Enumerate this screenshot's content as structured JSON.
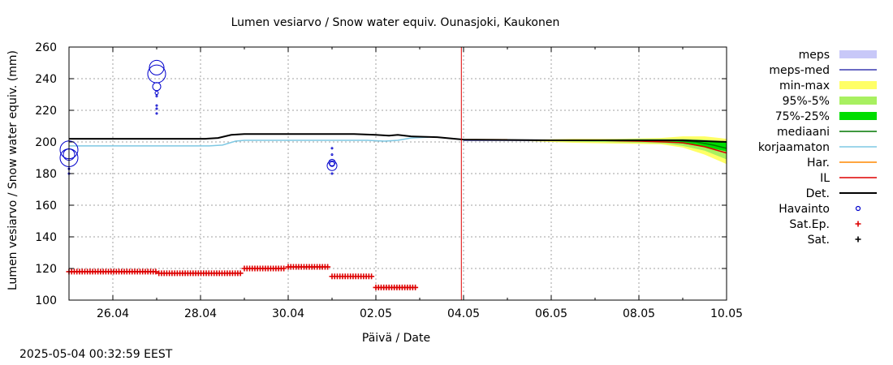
{
  "chart_data": {
    "type": "line",
    "title": "Lumen vesiarvo / Snow water equiv.   Ounasjoki, Kaukonen",
    "xlabel": "Päivä / Date",
    "ylabel": "Lumen vesiarvo / Snow water equiv. (mm)",
    "xlim": [
      25.0,
      40.0
    ],
    "ylim": [
      100,
      260
    ],
    "yticks": [
      100,
      120,
      140,
      160,
      180,
      200,
      220,
      240,
      260
    ],
    "xticks": [
      {
        "x": 26,
        "label": "26.04"
      },
      {
        "x": 28,
        "label": "28.04"
      },
      {
        "x": 30,
        "label": "30.04"
      },
      {
        "x": 32,
        "label": "02.05"
      },
      {
        "x": 34,
        "label": "04.05"
      },
      {
        "x": 36,
        "label": "06.05"
      },
      {
        "x": 38,
        "label": "08.05"
      },
      {
        "x": 40,
        "label": "10.05"
      }
    ],
    "x_units": "day (1 May = 31)",
    "grid": true,
    "legend_position": "right",
    "current_time_x": 33.95,
    "legend": [
      {
        "key": "meps",
        "label": "meps",
        "kind": "band",
        "color": "#c8c8f8"
      },
      {
        "key": "meps_med",
        "label": "meps-med",
        "kind": "line",
        "color": "#3a3ab0"
      },
      {
        "key": "minmax",
        "label": "min-max",
        "kind": "band",
        "color": "#ffff66"
      },
      {
        "key": "p95_5",
        "label": "95%-5%",
        "kind": "band",
        "color": "#a8f060"
      },
      {
        "key": "p75_25",
        "label": "75%-25%",
        "kind": "band",
        "color": "#00dd00"
      },
      {
        "key": "mediaani",
        "label": "mediaani",
        "kind": "line",
        "color": "#007700"
      },
      {
        "key": "korjaamaton",
        "label": "korjaamaton",
        "kind": "line",
        "color": "#7ec8e3"
      },
      {
        "key": "har",
        "label": "Har.",
        "kind": "line",
        "color": "#ff8800"
      },
      {
        "key": "il",
        "label": "IL",
        "kind": "line",
        "color": "#dd0000"
      },
      {
        "key": "det",
        "label": "Det.",
        "kind": "line",
        "color": "#000000"
      },
      {
        "key": "havainto",
        "label": "Havainto",
        "kind": "circle",
        "color": "#0000cc"
      },
      {
        "key": "sat_ep",
        "label": "Sat.Ep.",
        "kind": "plus",
        "color": "#dd0000"
      },
      {
        "key": "sat",
        "label": "Sat.",
        "kind": "plus",
        "color": "#000000"
      }
    ],
    "series": [
      {
        "key": "det",
        "x": [
          25.0,
          28.1,
          28.4,
          28.7,
          29.0,
          31.5,
          32.0,
          32.3,
          32.5,
          32.8,
          33.4,
          34.0,
          36.0,
          37.0,
          38.0,
          39.0,
          40.0
        ],
        "values": [
          202.0,
          202.0,
          202.5,
          204.5,
          205.0,
          205.0,
          204.5,
          204.0,
          204.5,
          203.5,
          203.0,
          201.5,
          201.0,
          201.0,
          201.0,
          201.0,
          200.0
        ]
      },
      {
        "key": "korjaamaton",
        "x": [
          25.0,
          28.2,
          28.5,
          28.8,
          29.0,
          31.8,
          32.2,
          32.5,
          32.8,
          33.2
        ],
        "values": [
          197.5,
          197.5,
          198.0,
          200.5,
          201.0,
          201.0,
          200.5,
          201.0,
          202.5,
          203.0
        ]
      },
      {
        "key": "har",
        "x": [
          34.0,
          34.5,
          35.0
        ],
        "values": [
          201.5,
          201.5,
          201.5
        ]
      },
      {
        "key": "il",
        "x": [
          37.0,
          38.0,
          38.6,
          39.0,
          39.5,
          40.0
        ],
        "values": [
          201.0,
          200.5,
          200.0,
          199.5,
          197.0,
          193.0
        ]
      },
      {
        "key": "mediaani",
        "x": [
          36.0,
          37.0,
          38.0,
          38.8,
          39.3,
          39.7,
          40.0
        ],
        "values": [
          201.0,
          201.0,
          201.0,
          201.0,
          200.0,
          198.0,
          196.0
        ]
      },
      {
        "key": "meps_med",
        "x": [
          34.0,
          35.0,
          36.0
        ],
        "values": [
          201.0,
          201.0,
          201.0
        ]
      }
    ],
    "bands": [
      {
        "key": "minmax",
        "x": [
          35.5,
          36.5,
          37.5,
          38.5,
          39.0,
          39.5,
          40.0
        ],
        "low": [
          200.5,
          199.5,
          199.0,
          198.5,
          196.5,
          192.0,
          186.0
        ],
        "high": [
          201.5,
          202.0,
          202.0,
          202.5,
          203.5,
          203.5,
          202.0
        ]
      },
      {
        "key": "p95_5",
        "x": [
          36.0,
          37.0,
          38.0,
          38.6,
          39.0,
          39.5,
          40.0
        ],
        "low": [
          200.5,
          200.0,
          199.5,
          199.0,
          197.5,
          194.5,
          189.0
        ],
        "high": [
          201.5,
          201.5,
          202.0,
          202.0,
          202.0,
          201.5,
          200.5
        ]
      },
      {
        "key": "p75_25",
        "x": [
          37.0,
          38.0,
          38.6,
          39.0,
          39.5,
          40.0
        ],
        "low": [
          200.5,
          200.5,
          200.0,
          199.0,
          197.0,
          194.0
        ],
        "high": [
          201.5,
          201.5,
          201.5,
          201.5,
          201.0,
          199.5
        ]
      }
    ],
    "observations": {
      "key": "havainto",
      "points": [
        {
          "x": 25.0,
          "y": 195,
          "weight": 11
        },
        {
          "x": 25.0,
          "y": 190,
          "weight": 11
        },
        {
          "x": 25.0,
          "y": 192,
          "weight": 7
        },
        {
          "x": 25.0,
          "y": 183,
          "weight": 1
        },
        {
          "x": 25.0,
          "y": 180,
          "weight": 1
        },
        {
          "x": 27.0,
          "y": 247,
          "weight": 9
        },
        {
          "x": 27.0,
          "y": 243,
          "weight": 11
        },
        {
          "x": 27.0,
          "y": 235,
          "weight": 5
        },
        {
          "x": 27.0,
          "y": 231,
          "weight": 2
        },
        {
          "x": 27.0,
          "y": 229,
          "weight": 1
        },
        {
          "x": 27.0,
          "y": 223,
          "weight": 1
        },
        {
          "x": 27.0,
          "y": 221,
          "weight": 1
        },
        {
          "x": 27.0,
          "y": 218,
          "weight": 1
        },
        {
          "x": 31.0,
          "y": 187,
          "weight": 4
        },
        {
          "x": 31.0,
          "y": 185,
          "weight": 6
        },
        {
          "x": 31.0,
          "y": 186,
          "weight": 3
        },
        {
          "x": 31.0,
          "y": 192,
          "weight": 1
        },
        {
          "x": 31.0,
          "y": 196,
          "weight": 1
        },
        {
          "x": 31.0,
          "y": 180,
          "weight": 1
        }
      ]
    },
    "sat_ep": {
      "key": "sat_ep",
      "segments": [
        {
          "x_start": 25.0,
          "x_end": 27.0,
          "y": 118
        },
        {
          "x_start": 27.05,
          "x_end": 28.95,
          "y": 117
        },
        {
          "x_start": 29.0,
          "x_end": 29.95,
          "y": 120
        },
        {
          "x_start": 30.0,
          "x_end": 30.95,
          "y": 121
        },
        {
          "x_start": 31.0,
          "x_end": 31.95,
          "y": 115
        },
        {
          "x_start": 32.0,
          "x_end": 32.95,
          "y": 108
        }
      ]
    }
  },
  "footer": {
    "timestamp": "2025-05-04 00:32:59 EEST"
  }
}
